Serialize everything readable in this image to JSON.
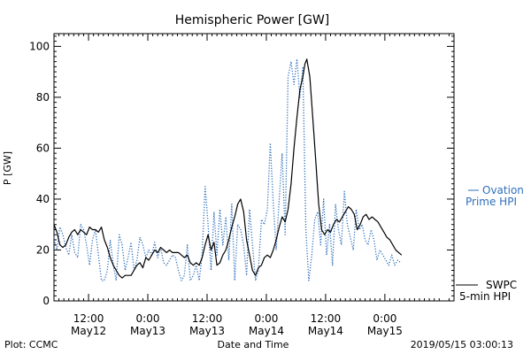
{
  "chart_data": {
    "type": "line",
    "title": "Hemispheric Power [GW]",
    "xlabel": "Date and Time",
    "ylabel": "P [GW]",
    "ylim": [
      0,
      105
    ],
    "x_unit": "hours since 2019-05-11 00:00",
    "xlim": [
      5,
      86
    ],
    "yticks": [
      0,
      20,
      40,
      60,
      80,
      100
    ],
    "xticks": [
      {
        "x": 12,
        "time": "12:00",
        "date": "May12"
      },
      {
        "x": 24,
        "time": "0:00",
        "date": "May13"
      },
      {
        "x": 36,
        "time": "12:00",
        "date": "May13"
      },
      {
        "x": 48,
        "time": "0:00",
        "date": "May14"
      },
      {
        "x": 60,
        "time": "12:00",
        "date": "May14"
      },
      {
        "x": 72,
        "time": "0:00",
        "date": "May15"
      }
    ],
    "grid": false,
    "series": [
      {
        "name": "SWPC 5-min HPI",
        "label_line1": "SWPC",
        "label_line2": "5-min HPI",
        "color": "#000000",
        "style": "solid",
        "points": [
          [
            5.0,
            30
          ],
          [
            5.6,
            27
          ],
          [
            6.2,
            22
          ],
          [
            6.8,
            21
          ],
          [
            7.4,
            22
          ],
          [
            8.0,
            25
          ],
          [
            8.6,
            27
          ],
          [
            9.2,
            28
          ],
          [
            9.8,
            26
          ],
          [
            10.4,
            28
          ],
          [
            11.0,
            27
          ],
          [
            11.6,
            26
          ],
          [
            12.2,
            29
          ],
          [
            12.8,
            28
          ],
          [
            13.4,
            28
          ],
          [
            14.0,
            27
          ],
          [
            14.6,
            29
          ],
          [
            15.2,
            24
          ],
          [
            15.8,
            21
          ],
          [
            16.4,
            17
          ],
          [
            17.0,
            14
          ],
          [
            17.6,
            12
          ],
          [
            18.2,
            10
          ],
          [
            18.8,
            9
          ],
          [
            19.4,
            10
          ],
          [
            20.0,
            10
          ],
          [
            20.6,
            10
          ],
          [
            21.2,
            12
          ],
          [
            21.8,
            14
          ],
          [
            22.4,
            15
          ],
          [
            23.0,
            13
          ],
          [
            23.6,
            17
          ],
          [
            24.2,
            16
          ],
          [
            24.8,
            18
          ],
          [
            25.4,
            20
          ],
          [
            26.0,
            19
          ],
          [
            26.6,
            21
          ],
          [
            27.2,
            20
          ],
          [
            27.8,
            19
          ],
          [
            28.4,
            20
          ],
          [
            29.0,
            19
          ],
          [
            29.6,
            19
          ],
          [
            30.2,
            19
          ],
          [
            30.8,
            18
          ],
          [
            31.4,
            17
          ],
          [
            32.0,
            18
          ],
          [
            32.6,
            15
          ],
          [
            33.2,
            14
          ],
          [
            33.8,
            15
          ],
          [
            34.4,
            14
          ],
          [
            35.0,
            17
          ],
          [
            35.6,
            22
          ],
          [
            36.2,
            26
          ],
          [
            36.8,
            20
          ],
          [
            37.4,
            23
          ],
          [
            38.0,
            14
          ],
          [
            38.6,
            15
          ],
          [
            39.2,
            18
          ],
          [
            39.8,
            20
          ],
          [
            40.4,
            24
          ],
          [
            41.0,
            29
          ],
          [
            41.6,
            33
          ],
          [
            42.2,
            38
          ],
          [
            42.8,
            40
          ],
          [
            43.4,
            35
          ],
          [
            44.0,
            24
          ],
          [
            44.6,
            18
          ],
          [
            45.2,
            12
          ],
          [
            45.8,
            10
          ],
          [
            46.4,
            13
          ],
          [
            47.0,
            14
          ],
          [
            47.6,
            17
          ],
          [
            48.2,
            18
          ],
          [
            48.8,
            17
          ],
          [
            49.4,
            20
          ],
          [
            50.0,
            24
          ],
          [
            50.6,
            29
          ],
          [
            51.2,
            33
          ],
          [
            51.8,
            31
          ],
          [
            52.4,
            36
          ],
          [
            53.0,
            46
          ],
          [
            53.6,
            60
          ],
          [
            54.2,
            72
          ],
          [
            54.8,
            83
          ],
          [
            55.4,
            88
          ],
          [
            55.8,
            93
          ],
          [
            56.2,
            95
          ],
          [
            56.8,
            88
          ],
          [
            57.4,
            72
          ],
          [
            58.0,
            55
          ],
          [
            58.6,
            38
          ],
          [
            59.2,
            28
          ],
          [
            59.8,
            26
          ],
          [
            60.4,
            28
          ],
          [
            61.0,
            27
          ],
          [
            61.6,
            30
          ],
          [
            62.2,
            32
          ],
          [
            62.8,
            31
          ],
          [
            63.4,
            33
          ],
          [
            64.0,
            35
          ],
          [
            64.6,
            37
          ],
          [
            65.2,
            36
          ],
          [
            65.8,
            34
          ],
          [
            66.4,
            28
          ],
          [
            67.0,
            30
          ],
          [
            67.6,
            33
          ],
          [
            68.2,
            34
          ],
          [
            68.8,
            32
          ],
          [
            69.4,
            33
          ],
          [
            70.0,
            32
          ],
          [
            70.6,
            31
          ],
          [
            71.2,
            29
          ],
          [
            71.8,
            27
          ],
          [
            72.4,
            25
          ],
          [
            73.0,
            24
          ],
          [
            73.6,
            22
          ],
          [
            74.2,
            20
          ],
          [
            74.8,
            19
          ],
          [
            75.4,
            18
          ]
        ]
      },
      {
        "name": "Ovation Prime HPI",
        "label_line1": "Ovation",
        "label_line2": "Prime HPI",
        "color": "#2e6fba",
        "style": "dotted",
        "points": [
          [
            5.0,
            25
          ],
          [
            5.6,
            20
          ],
          [
            6.2,
            29
          ],
          [
            6.8,
            26
          ],
          [
            7.4,
            21
          ],
          [
            8.0,
            18
          ],
          [
            8.6,
            26
          ],
          [
            9.2,
            19
          ],
          [
            9.8,
            17
          ],
          [
            10.4,
            30
          ],
          [
            11.0,
            28
          ],
          [
            11.6,
            22
          ],
          [
            12.2,
            14
          ],
          [
            12.8,
            24
          ],
          [
            13.4,
            28
          ],
          [
            14.0,
            18
          ],
          [
            14.6,
            8
          ],
          [
            15.2,
            8
          ],
          [
            15.8,
            12
          ],
          [
            16.4,
            24
          ],
          [
            17.0,
            14
          ],
          [
            17.6,
            8
          ],
          [
            18.2,
            26
          ],
          [
            18.8,
            22
          ],
          [
            19.4,
            12
          ],
          [
            20.0,
            17
          ],
          [
            20.6,
            23
          ],
          [
            21.2,
            12
          ],
          [
            21.8,
            16
          ],
          [
            22.4,
            25
          ],
          [
            23.0,
            22
          ],
          [
            23.6,
            17
          ],
          [
            24.2,
            20
          ],
          [
            24.8,
            18
          ],
          [
            25.4,
            23
          ],
          [
            26.0,
            17
          ],
          [
            26.6,
            21
          ],
          [
            27.2,
            15
          ],
          [
            27.8,
            14
          ],
          [
            28.4,
            16
          ],
          [
            29.0,
            18
          ],
          [
            29.6,
            17
          ],
          [
            30.2,
            12
          ],
          [
            30.8,
            8
          ],
          [
            31.4,
            10
          ],
          [
            32.0,
            22
          ],
          [
            32.6,
            8
          ],
          [
            33.2,
            10
          ],
          [
            33.8,
            14
          ],
          [
            34.4,
            8
          ],
          [
            35.0,
            18
          ],
          [
            35.6,
            45
          ],
          [
            36.2,
            30
          ],
          [
            36.8,
            12
          ],
          [
            37.4,
            35
          ],
          [
            38.0,
            18
          ],
          [
            38.6,
            36
          ],
          [
            39.2,
            22
          ],
          [
            39.8,
            33
          ],
          [
            40.4,
            16
          ],
          [
            41.0,
            38
          ],
          [
            41.6,
            8
          ],
          [
            42.2,
            30
          ],
          [
            42.8,
            28
          ],
          [
            43.4,
            22
          ],
          [
            44.0,
            10
          ],
          [
            44.6,
            36
          ],
          [
            45.2,
            22
          ],
          [
            45.8,
            8
          ],
          [
            46.4,
            12
          ],
          [
            47.0,
            32
          ],
          [
            47.6,
            30
          ],
          [
            48.2,
            36
          ],
          [
            48.8,
            62
          ],
          [
            49.4,
            38
          ],
          [
            50.0,
            20
          ],
          [
            50.6,
            40
          ],
          [
            51.2,
            58
          ],
          [
            51.8,
            26
          ],
          [
            52.4,
            88
          ],
          [
            53.0,
            94
          ],
          [
            53.6,
            85
          ],
          [
            54.2,
            95
          ],
          [
            54.8,
            80
          ],
          [
            55.4,
            92
          ],
          [
            56.0,
            28
          ],
          [
            56.6,
            8
          ],
          [
            57.2,
            18
          ],
          [
            57.8,
            32
          ],
          [
            58.4,
            35
          ],
          [
            59.0,
            22
          ],
          [
            59.6,
            40
          ],
          [
            60.2,
            18
          ],
          [
            60.8,
            30
          ],
          [
            61.4,
            14
          ],
          [
            62.0,
            38
          ],
          [
            62.6,
            28
          ],
          [
            63.2,
            22
          ],
          [
            63.8,
            43
          ],
          [
            64.4,
            30
          ],
          [
            65.0,
            25
          ],
          [
            65.6,
            20
          ],
          [
            66.2,
            36
          ],
          [
            66.8,
            28
          ],
          [
            67.4,
            30
          ],
          [
            68.0,
            24
          ],
          [
            68.6,
            22
          ],
          [
            69.2,
            28
          ],
          [
            69.8,
            24
          ],
          [
            70.4,
            16
          ],
          [
            71.0,
            20
          ],
          [
            71.6,
            18
          ],
          [
            72.2,
            16
          ],
          [
            72.8,
            14
          ],
          [
            73.4,
            18
          ],
          [
            74.0,
            14
          ],
          [
            74.6,
            16
          ],
          [
            75.2,
            15
          ]
        ]
      }
    ]
  },
  "footer": {
    "plot_credit": "Plot: CCMC",
    "timestamp": "2019/05/15 03:00:13"
  }
}
